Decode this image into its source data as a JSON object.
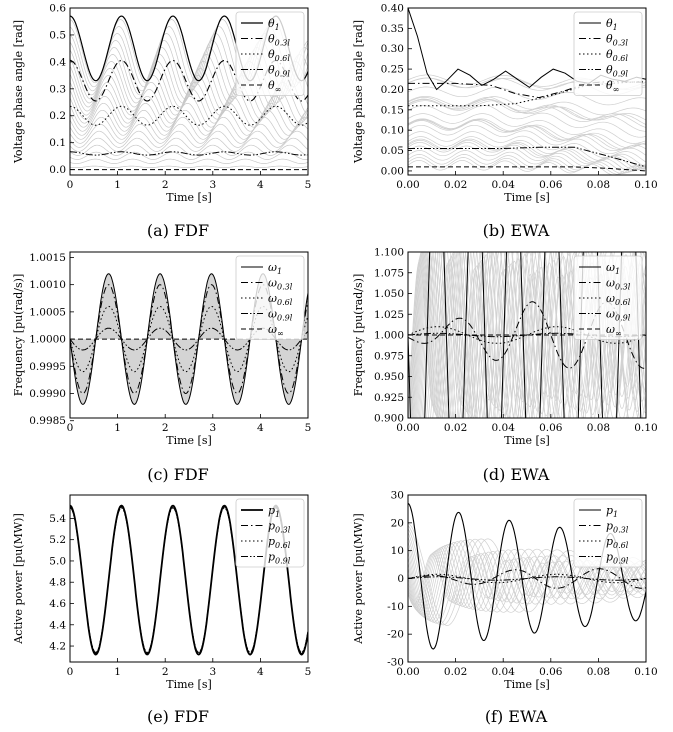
{
  "chart_data": [
    {
      "id": "a",
      "type": "line",
      "caption": "(a) FDF",
      "xlabel": "Time [s]",
      "ylabel": "Voltage phase angle [rad]",
      "xlim": [
        0,
        5
      ],
      "ylim": [
        -0.02,
        0.6
      ],
      "xticks": [
        0,
        1,
        2,
        3,
        4,
        5
      ],
      "yticks": [
        0.0,
        0.1,
        0.2,
        0.3,
        0.4,
        0.5,
        0.6
      ],
      "ytick_decimals": 1,
      "legend_position": "top-right",
      "background_family": {
        "count": 22,
        "color": "#c8c8c8",
        "description": "thin gray curves between θ1 and θ∞"
      },
      "series": [
        {
          "name": "θ_1",
          "style": "solid",
          "mean": 0.45,
          "amp": 0.12,
          "freq": 0.925,
          "phase": 1.5708,
          "weight": 1.2
        },
        {
          "name": "θ_0.3l",
          "style": "dashdot",
          "mean": 0.33,
          "amp": 0.075,
          "freq": 0.925,
          "phase": 1.5708,
          "weight": 1.1
        },
        {
          "name": "θ_0.6l",
          "style": "dotted",
          "mean": 0.2,
          "amp": 0.035,
          "freq": 0.925,
          "phase": 1.5708,
          "weight": 1.0
        },
        {
          "name": "θ_0.9l",
          "style": "dashdotdot",
          "mean": 0.06,
          "amp": 0.006,
          "freq": 0.925,
          "phase": 1.5708,
          "weight": 1.0
        },
        {
          "name": "θ_∞",
          "style": "dashed",
          "mean": 0.0,
          "amp": 0.0,
          "freq": 0.925,
          "phase": 0,
          "weight": 1.0
        }
      ]
    },
    {
      "id": "b",
      "type": "line",
      "caption": "(b) EWA",
      "xlabel": "Time [s]",
      "ylabel": "Voltage phase angle [rad]",
      "xlim": [
        0,
        0.1
      ],
      "ylim": [
        -0.01,
        0.4
      ],
      "xticks": [
        0.0,
        0.02,
        0.04,
        0.06,
        0.08,
        0.1
      ],
      "yticks": [
        0.0,
        0.05,
        0.1,
        0.15,
        0.2,
        0.25,
        0.3,
        0.35,
        0.4
      ],
      "ytick_decimals": 2,
      "legend_position": "top-right",
      "background_family": {
        "count": 26,
        "color": "#cfcfcf",
        "description": "thin gray curves spreading after t≈0.04 s"
      },
      "series": [
        {
          "name": "θ_1",
          "style": "solid",
          "points": [
            [
              0,
              0.4
            ],
            [
              0.004,
              0.33
            ],
            [
              0.008,
              0.24
            ],
            [
              0.012,
              0.2
            ],
            [
              0.016,
              0.22
            ],
            [
              0.021,
              0.25
            ],
            [
              0.026,
              0.235
            ],
            [
              0.031,
              0.21
            ],
            [
              0.036,
              0.225
            ],
            [
              0.041,
              0.245
            ],
            [
              0.046,
              0.225
            ],
            [
              0.051,
              0.205
            ],
            [
              0.056,
              0.23
            ],
            [
              0.061,
              0.25
            ],
            [
              0.066,
              0.24
            ],
            [
              0.071,
              0.22
            ],
            [
              0.076,
              0.215
            ],
            [
              0.081,
              0.235
            ],
            [
              0.086,
              0.225
            ],
            [
              0.091,
              0.22
            ],
            [
              0.096,
              0.23
            ],
            [
              0.1,
              0.225
            ]
          ]
        },
        {
          "name": "θ_0.3l",
          "style": "dashdot",
          "points": [
            [
              0,
              0.215
            ],
            [
              0.02,
              0.215
            ],
            [
              0.035,
              0.21
            ],
            [
              0.045,
              0.19
            ],
            [
              0.055,
              0.18
            ],
            [
              0.065,
              0.195
            ],
            [
              0.075,
              0.215
            ],
            [
              0.085,
              0.22
            ],
            [
              0.095,
              0.218
            ],
            [
              0.1,
              0.218
            ]
          ]
        },
        {
          "name": "θ_0.6l",
          "style": "dotted",
          "points": [
            [
              0,
              0.16
            ],
            [
              0.03,
              0.16
            ],
            [
              0.045,
              0.165
            ],
            [
              0.06,
              0.185
            ],
            [
              0.075,
              0.21
            ],
            [
              0.085,
              0.215
            ],
            [
              0.1,
              0.22
            ]
          ]
        },
        {
          "name": "θ_0.9l",
          "style": "dashdotdot",
          "points": [
            [
              0,
              0.055
            ],
            [
              0.04,
              0.055
            ],
            [
              0.055,
              0.058
            ],
            [
              0.07,
              0.058
            ],
            [
              0.085,
              0.035
            ],
            [
              0.1,
              0.01
            ]
          ]
        },
        {
          "name": "θ_∞",
          "style": "dashed",
          "points": [
            [
              0,
              0.01
            ],
            [
              0.07,
              0.01
            ],
            [
              0.085,
              0.006
            ],
            [
              0.1,
              0.0
            ]
          ]
        }
      ]
    },
    {
      "id": "c",
      "type": "line",
      "caption": "(c) FDF",
      "xlabel": "Time [s]",
      "ylabel": "Frequency [pu(rad/s)]",
      "xlim": [
        0,
        5
      ],
      "ylim": [
        0.99855,
        1.0016
      ],
      "xticks": [
        0,
        1,
        2,
        3,
        4,
        5
      ],
      "yticks": [
        0.9985,
        0.999,
        0.9995,
        1.0,
        1.0005,
        1.001,
        1.0015
      ],
      "ytick_decimals": 4,
      "legend_position": "top-right",
      "band_fill": "#d4d4d4",
      "series": [
        {
          "name": "ω_1",
          "style": "solid",
          "mean": 1.0,
          "amp": 0.0012,
          "freq": 0.925,
          "phase": 0,
          "sign": -1,
          "weight": 1.0
        },
        {
          "name": "ω_0.3l",
          "style": "dashdot",
          "mean": 1.0,
          "amp": 0.001,
          "freq": 0.925,
          "phase": 0,
          "sign": -1,
          "weight": 1.0
        },
        {
          "name": "ω_0.6l",
          "style": "dotted",
          "mean": 1.0,
          "amp": 0.0006,
          "freq": 0.925,
          "phase": 0,
          "sign": -1,
          "weight": 1.0
        },
        {
          "name": "ω_0.9l",
          "style": "dashdotdot",
          "mean": 1.0,
          "amp": 0.0002,
          "freq": 0.925,
          "phase": 0,
          "sign": -1,
          "weight": 1.0
        },
        {
          "name": "ω_∞",
          "style": "dashed",
          "mean": 1.0,
          "amp": 0.0,
          "freq": 0.925,
          "phase": 0,
          "sign": -1,
          "weight": 1.0
        }
      ]
    },
    {
      "id": "d",
      "type": "line",
      "caption": "(d) EWA",
      "xlabel": "Time [s]",
      "ylabel": "Frequency [pu(rad/s)]",
      "xlim": [
        0,
        0.1
      ],
      "ylim": [
        0.9,
        1.1
      ],
      "xticks": [
        0.0,
        0.02,
        0.04,
        0.06,
        0.08,
        0.1
      ],
      "yticks": [
        0.9,
        0.925,
        0.95,
        0.975,
        1.0,
        1.025,
        1.05,
        1.075,
        1.1
      ],
      "ytick_decimals": 3,
      "legend_position": "top-right",
      "background_family": {
        "count": 24,
        "color": "#d2d2d2",
        "description": "light gray high-frequency oscillations"
      },
      "series": [
        {
          "name": "ω_1",
          "style": "solid",
          "mean": 1.0,
          "amp": 0.25,
          "freq": 62,
          "phase": 0,
          "sign": -1,
          "weight": 1.0
        },
        {
          "name": "ω_0.3l",
          "style": "dashdot",
          "mean": 1.0,
          "amp": 0.04,
          "freq": 32,
          "phase": 0.5,
          "sign": -1,
          "weight": 1.0,
          "grow": true
        },
        {
          "name": "ω_0.6l",
          "style": "dotted",
          "mean": 1.0,
          "amp": 0.01,
          "freq": 20,
          "phase": 0,
          "sign": 1,
          "weight": 1.0
        },
        {
          "name": "ω_0.9l",
          "style": "dashdotdot",
          "mean": 1.0,
          "amp": 0.002,
          "freq": 20,
          "phase": 0,
          "sign": 1,
          "weight": 1.0
        },
        {
          "name": "ω_∞",
          "style": "dashed",
          "mean": 1.0,
          "amp": 0.0,
          "freq": 20,
          "phase": 0,
          "sign": 1,
          "weight": 1.0
        }
      ]
    },
    {
      "id": "e",
      "type": "line",
      "caption": "(e) FDF",
      "xlabel": "Time [s]",
      "ylabel": "Active power [pu(MW)]",
      "xlim": [
        0,
        5
      ],
      "ylim": [
        4.05,
        5.62
      ],
      "xticks": [
        0,
        1,
        2,
        3,
        4,
        5
      ],
      "yticks": [
        4.2,
        4.4,
        4.6,
        4.8,
        5.0,
        5.2,
        5.4
      ],
      "ytick_decimals": 1,
      "legend_position": "top-right",
      "series": [
        {
          "name": "p_1",
          "style": "solid",
          "mean": 4.82,
          "amp": 0.7,
          "freq": 0.925,
          "phase": 1.5708,
          "weight": 1.8
        },
        {
          "name": "p_0.3l",
          "style": "dashdot",
          "mean": 4.82,
          "amp": 0.69,
          "freq": 0.925,
          "phase": 1.5708,
          "weight": 1.0
        },
        {
          "name": "p_0.6l",
          "style": "dotted",
          "mean": 4.82,
          "amp": 0.68,
          "freq": 0.925,
          "phase": 1.5708,
          "weight": 1.0
        },
        {
          "name": "p_0.9l",
          "style": "dashdotdot",
          "mean": 4.82,
          "amp": 0.68,
          "freq": 0.925,
          "phase": 1.5708,
          "weight": 1.0
        }
      ]
    },
    {
      "id": "f",
      "type": "line",
      "caption": "(f) EWA",
      "xlabel": "Time [s]",
      "ylabel": "Active power [pu(MW)]",
      "xlim": [
        0,
        0.1
      ],
      "ylim": [
        -30,
        30
      ],
      "xticks": [
        0.0,
        0.02,
        0.04,
        0.06,
        0.08,
        0.1
      ],
      "yticks": [
        -30,
        -20,
        -10,
        0,
        10,
        20,
        30
      ],
      "ytick_decimals": 0,
      "legend_position": "top-right",
      "background_family": {
        "count": 18,
        "color": "#d0d0d0",
        "description": "light gray oscillations"
      },
      "series": [
        {
          "name": "p_1",
          "style": "solid",
          "mean": 0,
          "amp": 27,
          "freq": 47,
          "phase": 1.5708,
          "decay": 6,
          "weight": 1.1
        },
        {
          "name": "p_0.3l",
          "style": "dashdot",
          "mean": 0,
          "amp": 3.5,
          "freq": 28,
          "phase": 0,
          "sign": 1,
          "weight": 1.0,
          "grow": true
        },
        {
          "name": "p_0.6l",
          "style": "dotted",
          "mean": 0,
          "amp": 1.5,
          "freq": 20,
          "phase": 0,
          "sign": 1,
          "weight": 1.0
        },
        {
          "name": "p_0.9l",
          "style": "dashdotdot",
          "mean": 0,
          "amp": 0.6,
          "freq": 20,
          "phase": 0,
          "sign": 1,
          "weight": 1.0
        }
      ]
    }
  ]
}
